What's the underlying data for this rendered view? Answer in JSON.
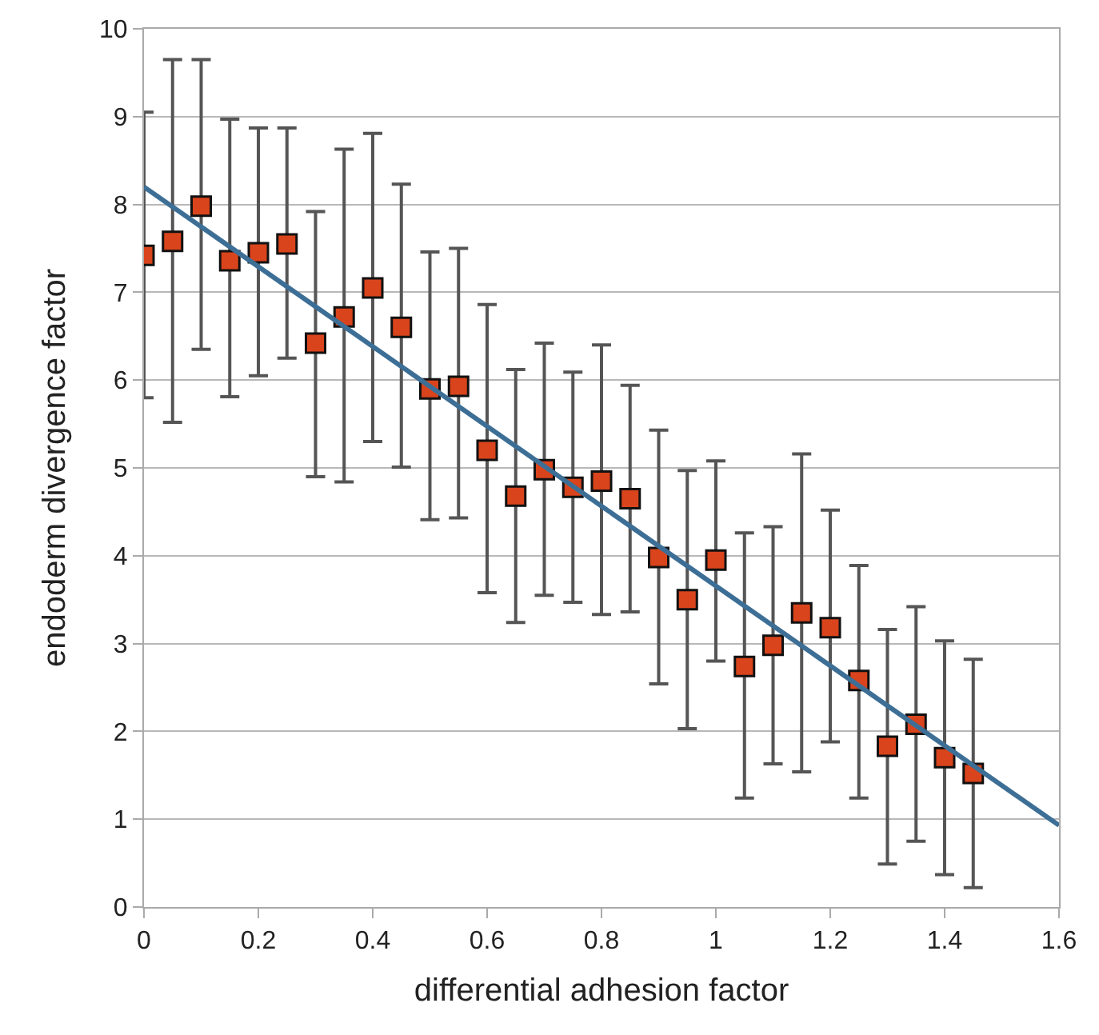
{
  "chart_data": {
    "type": "scatter",
    "xlabel": "differential adhesion factor",
    "ylabel": "endoderm divergence factor",
    "xlim": [
      0,
      1.6
    ],
    "xticks": [
      0,
      0.2,
      0.4,
      0.6,
      0.8,
      1,
      1.2,
      1.4,
      1.6
    ],
    "ylim": [
      0,
      10
    ],
    "yticks": [
      0,
      1,
      2,
      3,
      4,
      5,
      6,
      7,
      8,
      9,
      10
    ],
    "grid": "y",
    "series": [
      {
        "color": "#d9441c",
        "marker": "square",
        "x": [
          0,
          0.05,
          0.1,
          0.15,
          0.2,
          0.25,
          0.3,
          0.35,
          0.4,
          0.45,
          0.5,
          0.55,
          0.6,
          0.65,
          0.7,
          0.75,
          0.8,
          0.85,
          0.9,
          0.95,
          1,
          1.05,
          1.1,
          1.15,
          1.2,
          1.25,
          1.3,
          1.35,
          1.4,
          1.45
        ],
        "values": [
          7.42,
          7.58,
          7.98,
          7.36,
          7.45,
          7.55,
          6.42,
          6.72,
          7.05,
          6.6,
          5.9,
          5.93,
          5.2,
          4.68,
          4.98,
          4.78,
          4.85,
          4.65,
          3.98,
          3.5,
          3.95,
          2.74,
          2.98,
          3.35,
          3.18,
          2.58,
          1.83,
          2.08,
          1.7,
          1.52
        ],
        "errors": [
          [
            5.8,
            9.05
          ],
          [
            5.52,
            9.65
          ],
          [
            6.35,
            9.65
          ],
          [
            5.81,
            8.97
          ],
          [
            6.05,
            8.87
          ],
          [
            6.25,
            8.87
          ],
          [
            4.9,
            7.92
          ],
          [
            4.84,
            8.63
          ],
          [
            5.3,
            8.81
          ],
          [
            5.01,
            8.23
          ],
          [
            4.41,
            7.46
          ],
          [
            4.43,
            7.5
          ],
          [
            3.58,
            6.86
          ],
          [
            3.24,
            6.12
          ],
          [
            3.55,
            6.42
          ],
          [
            3.47,
            6.09
          ],
          [
            3.33,
            6.4
          ],
          [
            3.36,
            5.94
          ],
          [
            2.54,
            5.43
          ],
          [
            2.03,
            4.97
          ],
          [
            2.8,
            5.08
          ],
          [
            1.24,
            4.26
          ],
          [
            1.63,
            4.33
          ],
          [
            1.54,
            5.16
          ],
          [
            1.88,
            4.52
          ],
          [
            1.24,
            3.89
          ],
          [
            0.49,
            3.16
          ],
          [
            0.75,
            3.42
          ],
          [
            0.37,
            3.03
          ],
          [
            0.22,
            2.82
          ]
        ]
      },
      {
        "type": "line",
        "color": "#3d6f96",
        "marker": "none",
        "line_style": "solid",
        "x": [
          0,
          1.6
        ],
        "values": [
          8.2,
          0.93
        ]
      }
    ]
  }
}
